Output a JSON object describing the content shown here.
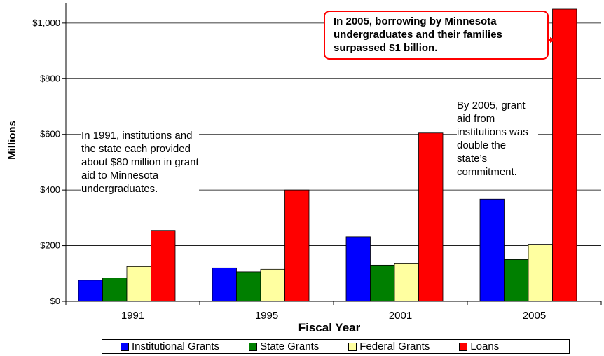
{
  "chart_data": {
    "type": "bar",
    "categories": [
      "1991",
      "1995",
      "2001",
      "2005"
    ],
    "series": [
      {
        "name": "Institutional Grants",
        "values": [
          76,
          120,
          232,
          367
        ],
        "color": "#0000ff"
      },
      {
        "name": "State Grants",
        "values": [
          84,
          106,
          130,
          150
        ],
        "color": "#007f00"
      },
      {
        "name": "Federal Grants",
        "values": [
          125,
          115,
          135,
          205
        ],
        "color": "#ffffa0"
      },
      {
        "name": "Loans",
        "values": [
          255,
          400,
          605,
          1050
        ],
        "color": "#ff0000"
      }
    ],
    "xlabel": "Fiscal Year",
    "ylabel": "Millions",
    "ylim": [
      0,
      1050
    ],
    "yticks": [
      0,
      200,
      400,
      600,
      800,
      1000
    ],
    "ytick_labels": [
      "$0",
      "$200",
      "$400",
      "$600",
      "$800",
      "$1,000"
    ],
    "grid": true,
    "legend_position": "bottom",
    "annotations": [
      {
        "text": "In 1991, institutions and the state each provided about $80 million in grant aid to Minnesota undergraduates."
      },
      {
        "text": "By 2005, grant aid from institutions was double the state’s commitment."
      },
      {
        "text": "In 2005, borrowing by Minnesota undergraduates and their families surpassed $1 billion.",
        "style": "callout",
        "border_color": "#ff0000"
      }
    ]
  }
}
